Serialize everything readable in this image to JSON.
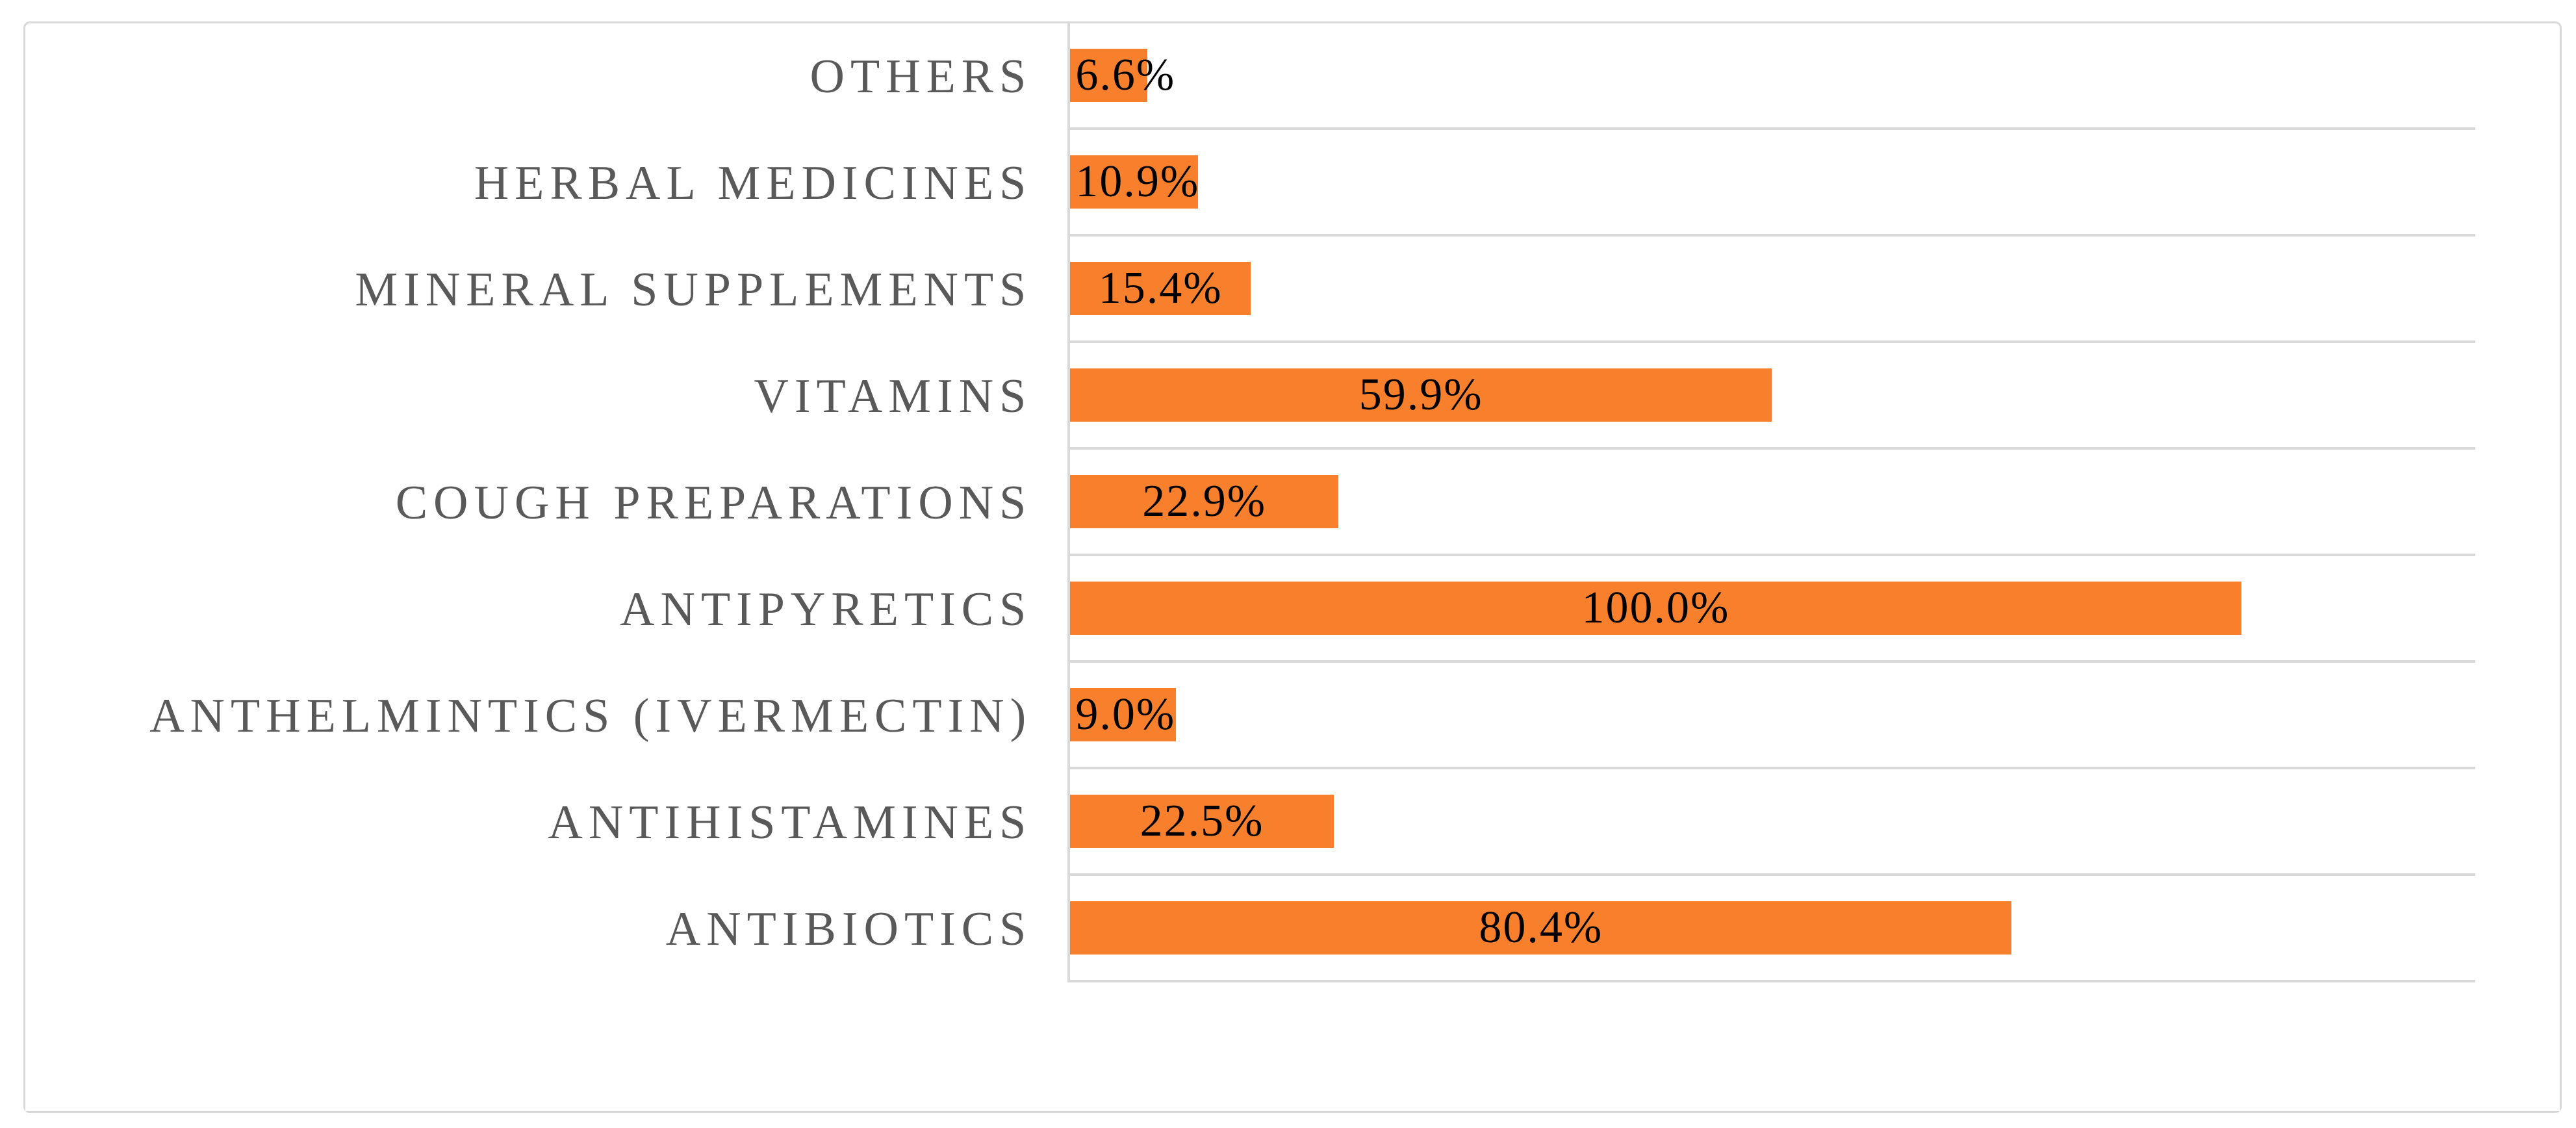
{
  "figure": {
    "background_color": "#ffffff",
    "border_color": "#d9d9d9"
  },
  "chart_data": {
    "type": "bar",
    "orientation": "horizontal",
    "title": "",
    "xlabel": "",
    "ylabel": "",
    "categories": [
      "OTHERS",
      "HERBAL MEDICINES",
      "MINERAL SUPPLEMENTS",
      "VITAMINS",
      "COUGH PREPARATIONS",
      "ANTIPYRETICS",
      "ANTHELMINTICS (IVERMECTIN)",
      "ANTIHISTAMINES",
      "ANTIBIOTICS"
    ],
    "values": [
      6.6,
      10.9,
      15.4,
      59.9,
      22.9,
      100.0,
      9.0,
      22.5,
      80.4
    ],
    "value_labels": [
      "6.6%",
      "10.9%",
      "15.4%",
      "59.9%",
      "22.9%",
      "100.0%",
      "9.0%",
      "22.5%",
      "80.4%"
    ],
    "unit": "%",
    "xlim": [
      0,
      120
    ],
    "x_axis_tick_labels": "none",
    "legend": "none",
    "grid": "category boundary gridlines, light gray, right of axis only",
    "bar_color": "#f8802c",
    "category_label_color": "#595959",
    "value_label_color": "#000000",
    "gridline_color": "#d9d9d9",
    "axis_line_color": "#d9d9d9"
  }
}
